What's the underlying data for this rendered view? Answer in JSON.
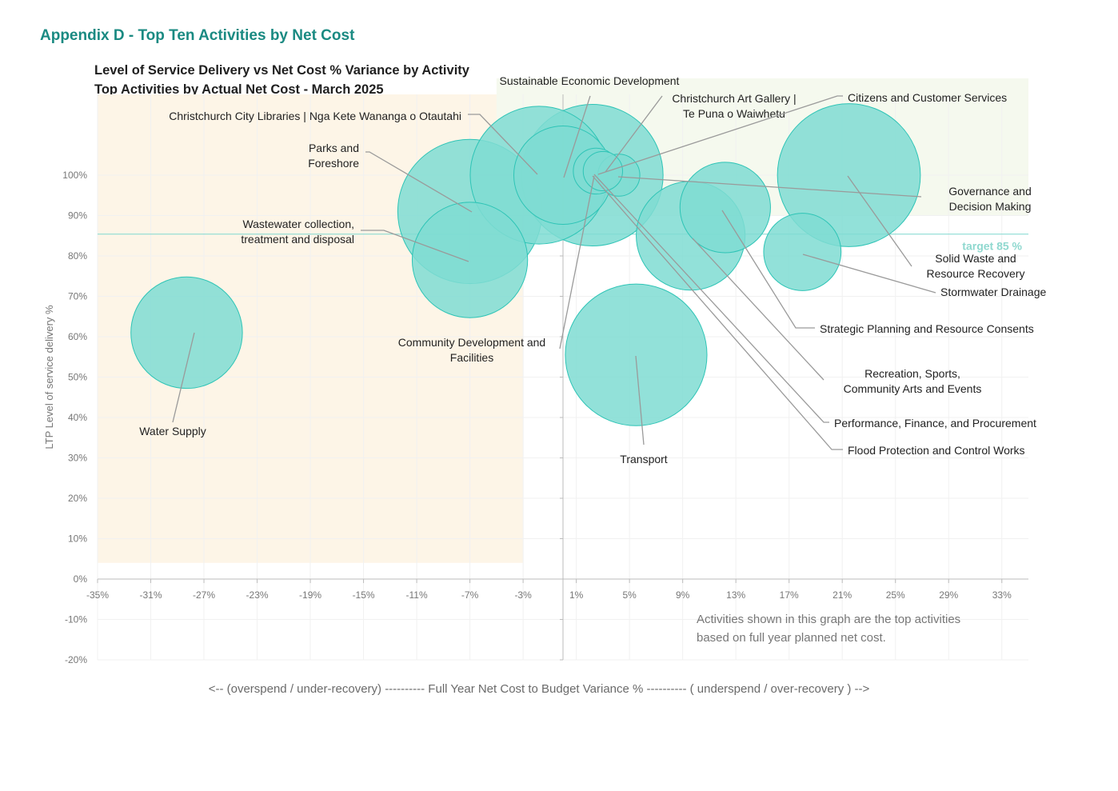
{
  "page": {
    "heading": "Appendix D - Top Ten Activities by Net Cost",
    "note_line1": "Activities shown in this graph are the top activities",
    "note_line2": "based on full year planned net cost."
  },
  "chart_data": {
    "type": "bubble",
    "title": "Level of Service Delivery vs Net Cost % Variance by Activity",
    "subtitle": "Top Activities by Actual  Net Cost - March 2025",
    "xlabel": "<-- (overspend / under-recovery) ---------- Full Year Net Cost to Budget Variance % ---------- ( underspend / over-recovery ) -->",
    "ylabel": "LTP Level of service delivery %",
    "xlim": [
      -35,
      35
    ],
    "ylim": [
      -20,
      120
    ],
    "x_ticks": [
      "-35%",
      "-31%",
      "-27%",
      "-23%",
      "-19%",
      "-15%",
      "-11%",
      "-7%",
      "-3%",
      "1%",
      "5%",
      "9%",
      "13%",
      "17%",
      "21%",
      "25%",
      "29%",
      "33%"
    ],
    "y_ticks": [
      "-20%",
      "-10%",
      "0%",
      "10%",
      "20%",
      "30%",
      "40%",
      "50%",
      "60%",
      "70%",
      "80%",
      "90%",
      "100%"
    ],
    "target": {
      "label": "target 85 %",
      "value": 85
    },
    "colors": {
      "bubble": "#7fdcd2",
      "bubble_stroke": "#2ec4b6",
      "target": "#7fd8cf",
      "warn_zone": "#fdf5e7",
      "good_zone": "#f5f9ee"
    },
    "series": [
      {
        "name": "Water Supply",
        "x": -28.3,
        "y": 61,
        "size": 8.5,
        "label_lines": [
          "Water Supply"
        ]
      },
      {
        "name": "Parks and Foreshore",
        "x": -7.0,
        "y": 91,
        "size": 11,
        "label_lines": [
          "Parks and",
          "Foreshore"
        ]
      },
      {
        "name": "Wastewater collection, treatment and disposal",
        "x": -7.0,
        "y": 79,
        "size": 8.8,
        "label_lines": [
          "Wastewater collection,",
          "treatment and disposal"
        ]
      },
      {
        "name": "Christchurch City Libraries | Nga Kete Wananga o Otautahi",
        "x": -1.8,
        "y": 100,
        "size": 10.5,
        "label_lines": [
          "Christchurch City Libraries | Nga Kete Wananga o Otautahi"
        ]
      },
      {
        "name": "Community Development and Facilities",
        "x": 0.0,
        "y": 100,
        "size": 7.5,
        "label_lines": [
          "Community Development and",
          "Facilities"
        ]
      },
      {
        "name": "Sustainable Economic Development",
        "x": 2.2,
        "y": 100,
        "size": 10.8,
        "label_lines": [
          "Sustainable Economic Development"
        ]
      },
      {
        "name": "Christchurch Art Gallery | Te Puna o Waiwhetu",
        "x": 2.5,
        "y": 101,
        "size": 3.5,
        "label_lines": [
          "Christchurch Art Gallery |",
          "Te Puna o Waiwhetu"
        ]
      },
      {
        "name": "Citizens and Customer Services",
        "x": 3.0,
        "y": 101,
        "size": 3.0,
        "label_lines": [
          "Citizens and Customer Services"
        ]
      },
      {
        "name": "Governance and Decision Making",
        "x": 4.2,
        "y": 100,
        "size": 3.2,
        "label_lines": [
          "Governance and",
          "Decision Making"
        ]
      },
      {
        "name": "Solid Waste and Resource Recovery",
        "x": 21.5,
        "y": 100,
        "size": 10.9,
        "label_lines": [
          "Solid Waste and",
          "Resource Recovery"
        ]
      },
      {
        "name": "Stormwater Drainage",
        "x": 18.0,
        "y": 81,
        "size": 5.9,
        "label_lines": [
          "Stormwater Drainage"
        ]
      },
      {
        "name": "Strategic Planning and Resource Consents",
        "x": 12.2,
        "y": 92,
        "size": 6.9,
        "label_lines": [
          "Strategic Planning and Resource Consents"
        ]
      },
      {
        "name": "Recreation, Sports, Community Arts and Events",
        "x": 9.6,
        "y": 85,
        "size": 8.3,
        "label_lines": [
          "Recreation, Sports,",
          "Community Arts and Events"
        ]
      },
      {
        "name": "Transport",
        "x": 5.5,
        "y": 55.5,
        "size": 10.8,
        "label_lines": [
          "Transport"
        ]
      },
      {
        "name": "Performance, Finance, and Procurement",
        "x": 2.5,
        "y": 100.5,
        "size": 0.5,
        "label_lines": [
          "Performance, Finance, and Procurement"
        ]
      },
      {
        "name": "Flood Protection and Control Works",
        "x": 2.5,
        "y": 100.5,
        "size": 0.5,
        "label_lines": [
          "Flood Protection and Control Works"
        ]
      }
    ]
  }
}
